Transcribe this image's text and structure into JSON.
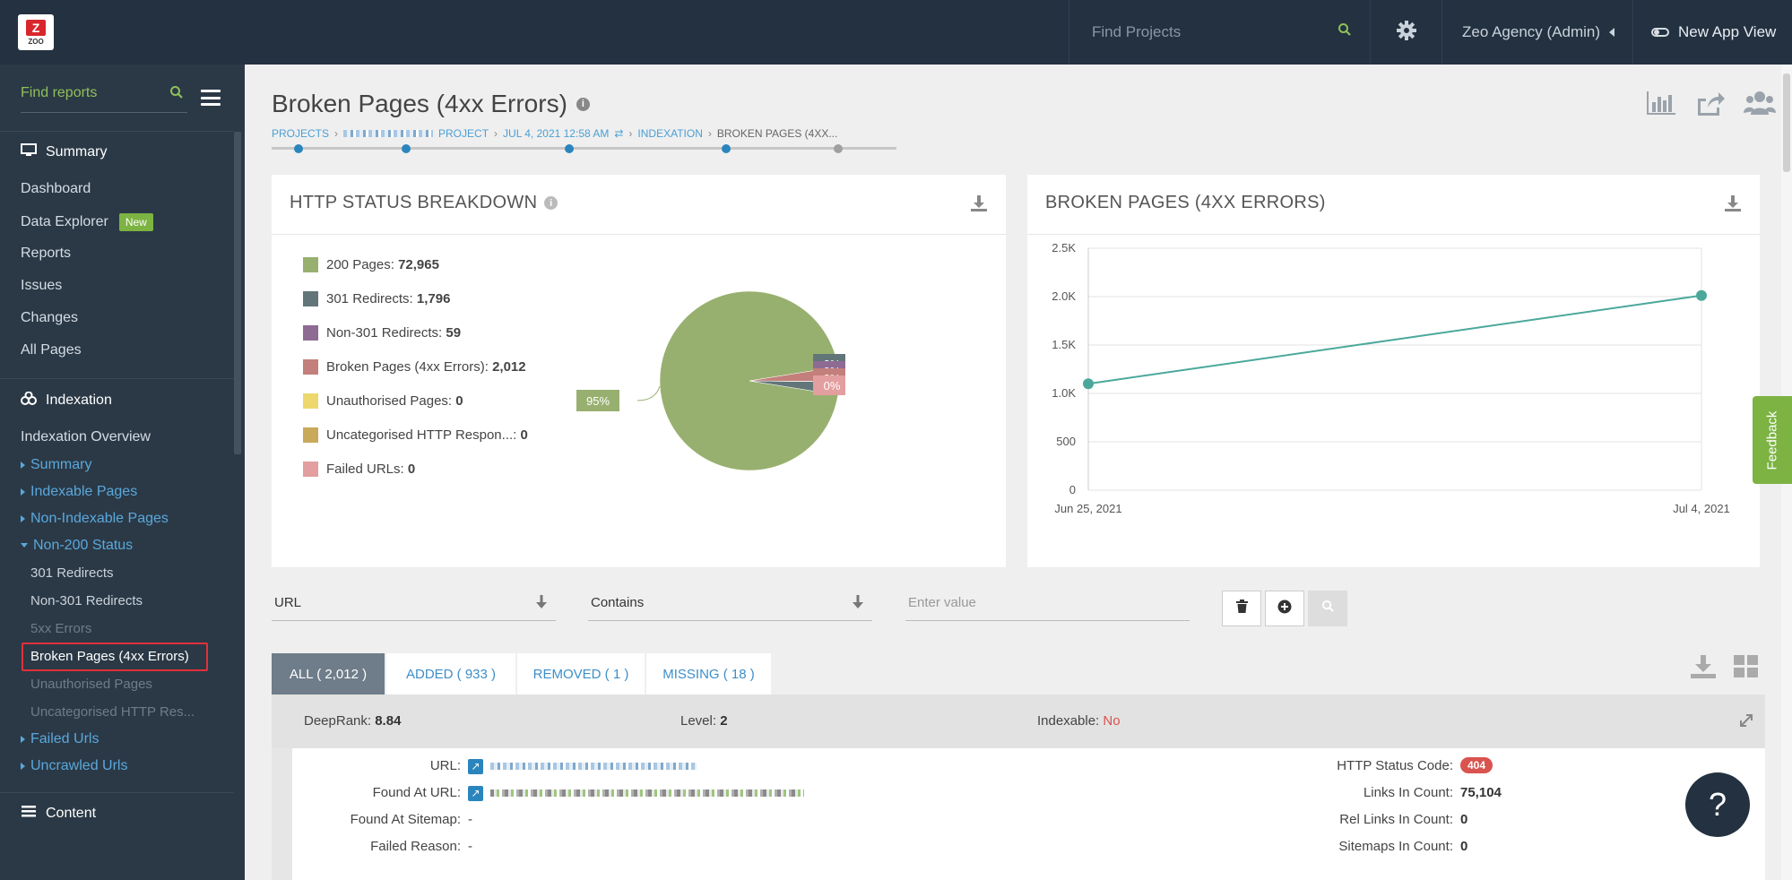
{
  "topbar": {
    "logo_text": "ZOO",
    "search_placeholder": "Find Projects",
    "user_label": "Zeo Agency (Admin)",
    "new_view_label": "New App View"
  },
  "sidebar": {
    "search_placeholder": "Find reports",
    "summary_head": "Summary",
    "items_summary": [
      "Dashboard",
      "Data Explorer",
      "Reports",
      "Issues",
      "Changes",
      "All Pages"
    ],
    "new_badge": "New",
    "indexation_head": "Indexation",
    "indexation_overview": "Indexation Overview",
    "groups": [
      "Summary",
      "Indexable Pages",
      "Non-Indexable Pages",
      "Non-200 Status"
    ],
    "non200_children": [
      "301 Redirects",
      "Non-301 Redirects",
      "5xx Errors",
      "Broken Pages (4xx Errors)",
      "Unauthorised Pages",
      "Uncategorised HTTP Res..."
    ],
    "groups_after": [
      "Failed Urls",
      "Uncrawled Urls"
    ],
    "content_head": "Content"
  },
  "page": {
    "title": "Broken Pages (4xx Errors)",
    "breadcrumb": {
      "projects": "PROJECTS",
      "project": "PROJECT",
      "date": "JUL 4, 2021 12:58 AM",
      "indexation": "INDEXATION",
      "current": "BROKEN PAGES (4XX..."
    }
  },
  "http_card": {
    "title": "HTTP STATUS BREAKDOWN",
    "legend": [
      {
        "label": "200 Pages:",
        "value": "72,965",
        "color": "#98b06f"
      },
      {
        "label": "301 Redirects:",
        "value": "1,796",
        "color": "#62767a"
      },
      {
        "label": "Non-301 Redirects:",
        "value": "59",
        "color": "#8e6b93"
      },
      {
        "label": "Broken Pages (4xx Errors):",
        "value": "2,012",
        "color": "#c37f7b"
      },
      {
        "label": "Unauthorised Pages:",
        "value": "0",
        "color": "#ecd86d"
      },
      {
        "label": "Uncategorised HTTP Respon...:",
        "value": "0",
        "color": "#c9a95a"
      },
      {
        "label": "Failed URLs:",
        "value": "0",
        "color": "#e39e9f"
      }
    ],
    "pie_main_label": "95%",
    "pie_small_labels": [
      "2%",
      "0%",
      "3%",
      "0%"
    ]
  },
  "chart_data": {
    "type": "line",
    "title": "BROKEN PAGES (4XX ERRORS)",
    "x": [
      "Jun 25, 2021",
      "Jul 4, 2021"
    ],
    "series": [
      {
        "values": [
          1100,
          2012
        ],
        "color": "#4aa89b"
      }
    ],
    "ylim": [
      0,
      2500
    ],
    "yticks": [
      "0",
      "500",
      "1.0K",
      "1.5K",
      "2.0K",
      "2.5K"
    ],
    "xlabel": "",
    "ylabel": "",
    "grid": true
  },
  "filter": {
    "field": "URL",
    "operator": "Contains",
    "value_placeholder": "Enter value"
  },
  "tabs": [
    {
      "label": "ALL ( 2,012 )"
    },
    {
      "label": "ADDED ( 933 )"
    },
    {
      "label": "REMOVED ( 1 )"
    },
    {
      "label": "MISSING ( 18 )"
    }
  ],
  "result": {
    "deeprank_label": "DeepRank:",
    "deeprank": "8.84",
    "level_label": "Level:",
    "level": "2",
    "indexable_label": "Indexable:",
    "indexable": "No",
    "url_label": "URL:",
    "found_at_url_label": "Found At URL:",
    "found_at_sitemap_label": "Found At Sitemap:",
    "found_at_sitemap": "-",
    "failed_reason_label": "Failed Reason:",
    "failed_reason": "-",
    "http_status_label": "HTTP Status Code:",
    "http_status": "404",
    "links_in_label": "Links In Count:",
    "links_in": "75,104",
    "rel_links_label": "Rel Links In Count:",
    "rel_links": "0",
    "sitemaps_in_label": "Sitemaps In Count:",
    "sitemaps_in": "0"
  },
  "feedback_label": "Feedback",
  "help_label": "?"
}
